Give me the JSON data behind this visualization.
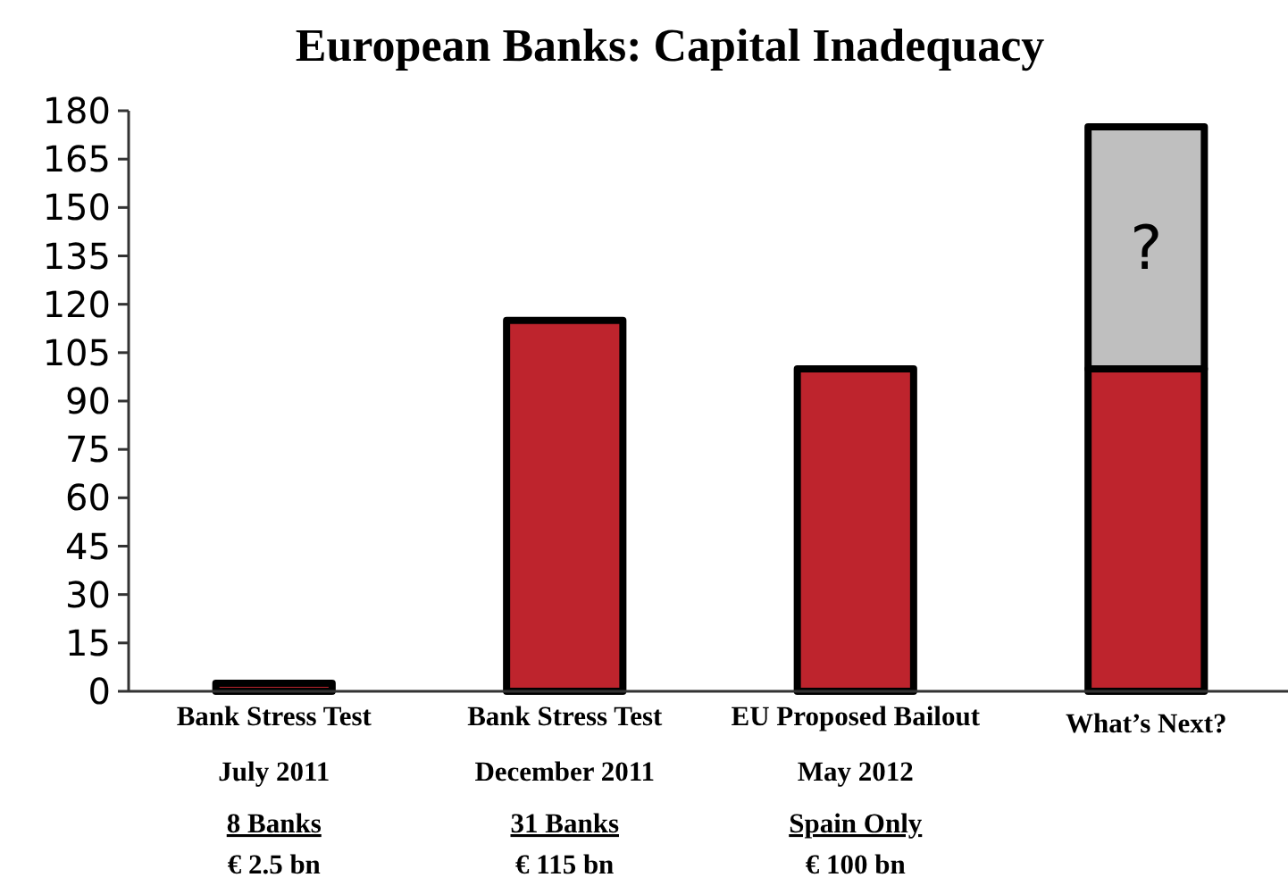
{
  "chart_data": {
    "type": "bar",
    "title": "European Banks: Capital Inadequacy",
    "categories": [
      "Bank Stress Test\nJuly 2011\n8 Banks\n€ 2.5 bn",
      "Bank Stress Test\nDecember 2011\n31 Banks\n€ 115 bn",
      "EU Proposed Bailout\nMay 2012\nSpain Only\n€ 100 bn",
      "What’s Next?"
    ],
    "stacked": true,
    "series": [
      {
        "color": "#be242d",
        "values": [
          2.5,
          115,
          100,
          100
        ]
      },
      {
        "color": "#bfbfbf",
        "values": [
          0,
          0,
          0,
          75
        ]
      }
    ],
    "ylim": [
      0,
      180
    ],
    "yticks": [
      0,
      15,
      30,
      45,
      60,
      75,
      90,
      105,
      120,
      135,
      150,
      165,
      180
    ],
    "grid": false,
    "annotations": [
      "?"
    ]
  }
}
